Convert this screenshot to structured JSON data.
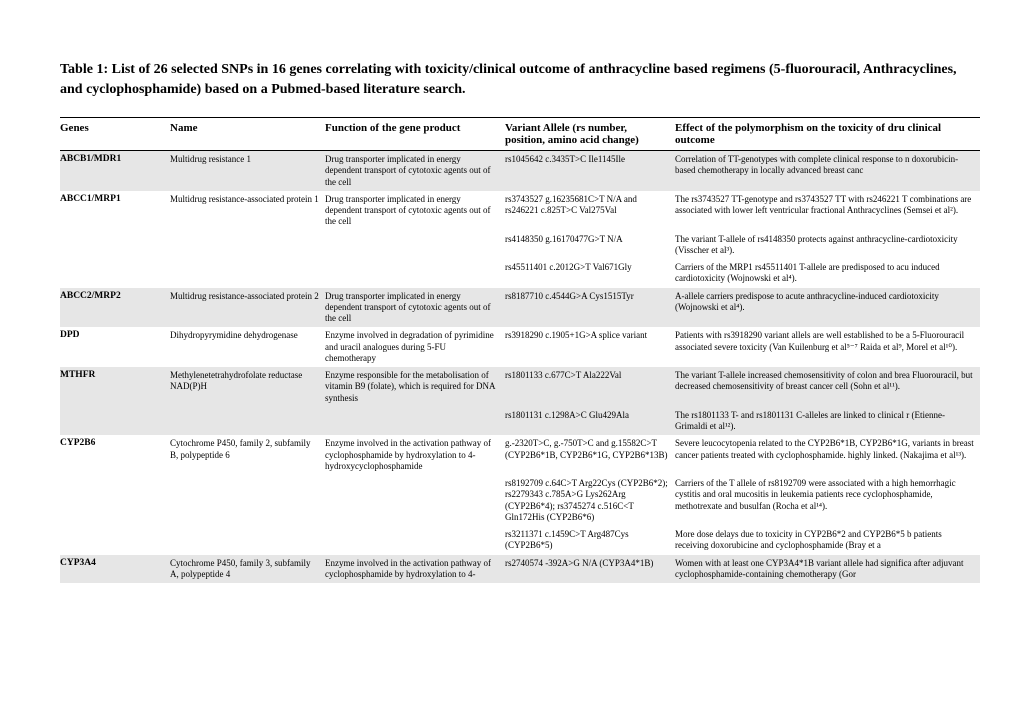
{
  "title": "Table 1: List of 26 selected SNPs in 16 genes correlating with toxicity/clinical outcome of anthracycline based regimens (5-fluorouracil, Anthracyclines, and cyclophosphamide) based on a Pubmed-based literature search.",
  "headers": {
    "c1": "Genes",
    "c2": "Name",
    "c3": "Function of the gene product",
    "c4": "Variant Allele (rs number, position, amino acid change)",
    "c5": "Effect of the polymorphism on the toxicity of dru clinical outcome"
  },
  "rows": [
    {
      "shaded": true,
      "gene": "ABCB1/MDR1",
      "name": "Multidrug resistance 1",
      "func": "Drug transporter implicated in energy dependent transport of cytotoxic agents out of the cell",
      "variant": "rs1045642 c.3435T>C Ile1145Ile",
      "effect": "Correlation of TT-genotypes with complete clinical response to n doxorubicin-based chemotherapy in locally advanced breast canc"
    },
    {
      "shaded": false,
      "gene": "ABCC1/MRP1",
      "name": "Multidrug resistance-associated protein 1",
      "func": "Drug transporter implicated in energy dependent transport of cytotoxic agents out of the cell",
      "variant": "rs3743527 g.16235681C>T N/A and rs246221 c.825T>C Val275Val",
      "effect": "The rs3743527 TT-genotype and rs3743527 TT with rs246221 T combinations are associated with lower left ventricular fractional Anthracyclines (Semsei et al²)."
    },
    {
      "shaded": false,
      "gene": "",
      "name": "",
      "func": "",
      "variant": "rs4148350 g.16170477G>T N/A",
      "effect": "The variant T-allele of rs4148350 protects against anthracycline-cardiotoxicity (Visscher et al³)."
    },
    {
      "shaded": false,
      "gene": "",
      "name": "",
      "func": "",
      "variant": "rs45511401 c.2012G>T Val671Gly",
      "effect": "Carriers of the MRP1 rs45511401 T-allele are predisposed to acu induced cardiotoxicity (Wojnowski et al⁴)."
    },
    {
      "shaded": true,
      "gene": "ABCC2/MRP2",
      "name": "Multidrug resistance-associated protein 2",
      "func": "Drug transporter implicated in energy dependent transport of cytotoxic agents out of the cell",
      "variant": "rs8187710 c.4544G>A Cys1515Tyr",
      "effect": "A-allele carriers predispose to acute anthracycline-induced cardiotoxicity (Wojnowski et al⁴)."
    },
    {
      "shaded": false,
      "gene": "DPD",
      "name": "Dihydropyrymidine dehydrogenase",
      "func": "Enzyme involved in degradation of pyrimidine and uracil analogues during 5-FU chemotherapy",
      "variant": "rs3918290 c.1905+1G>A splice variant",
      "effect": "Patients with rs3918290 variant allels are well established to be a 5-Fluorouracil associated severe toxicity (Van Kuilenburg et al⁵⁻⁷ Raida et al⁹, Morel et al¹⁰)."
    },
    {
      "shaded": true,
      "gene": "MTHFR",
      "name": "Methylenetetrahydrofolate reductase NAD(P)H",
      "func": "Enzyme responsible for the metabolisation of vitamin B9 (folate), which is required for DNA synthesis",
      "variant": "rs1801133 c.677C>T Ala222Val",
      "effect": "The variant T-allele increased chemosensitivity of colon and brea Fluorouracil, but decreased chemosensitivity of breast cancer cell (Sohn et al¹¹)."
    },
    {
      "shaded": true,
      "gene": "",
      "name": "",
      "func": "",
      "variant": "rs1801131 c.1298A>C Glu429Ala",
      "effect": "The rs1801133 T- and rs1801131 C-alleles are linked to clinical r (Etienne-Grimaldi et al¹²)."
    },
    {
      "shaded": false,
      "gene": "CYP2B6",
      "name": "Cytochrome P450, family 2, subfamily B, polypeptide 6",
      "func": "Enzyme involved in the activation pathway of cyclophosphamide by hydroxylation to 4-hydroxycyclophosphamide",
      "variant": "g.-2320T>C, g.-750T>C and g.15582C>T (CYP2B6*1B, CYP2B6*1G, CYP2B6*13B)",
      "effect": "Severe leucocytopenia related to the CYP2B6*1B, CYP2B6*1G, variants in breast cancer patients treated with cyclophosphamide. highly linked. (Nakajima et al¹³)."
    },
    {
      "shaded": false,
      "gene": "",
      "name": "",
      "func": "",
      "variant": "rs8192709 c.64C>T Arg22Cys (CYP2B6*2); rs2279343 c.785A>G Lys262Arg (CYP2B6*4); rs3745274 c.516C<T Gln172His (CYP2B6*6)",
      "effect": "Carriers of the T allele of rs8192709 were associated with a high hemorrhagic cystitis and oral mucositis in leukemia patients rece cyclophosphamide, methotrexate and busulfan (Rocha et al¹⁴)."
    },
    {
      "shaded": false,
      "gene": "",
      "name": "",
      "func": "",
      "variant": "rs3211371 c.1459C>T Arg487Cys (CYP2B6*5)",
      "effect": "More dose delays due to toxicity in CYP2B6*2 and CYP2B6*5 b patients receiving doxorubicine and cyclophosphamide (Bray et a"
    },
    {
      "shaded": true,
      "gene": "CYP3A4",
      "name": "Cytochrome P450, family 3, subfamily A, polypeptide 4",
      "func": "Enzyme involved in the activation pathway of cyclophosphamide by hydroxylation to 4-",
      "variant": "rs2740574 -392A>G N/A (CYP3A4*1B)",
      "effect": "Women with at least one CYP3A4*1B variant allele had significa after adjuvant cyclophosphamide-containing chemotherapy (Gor"
    }
  ]
}
